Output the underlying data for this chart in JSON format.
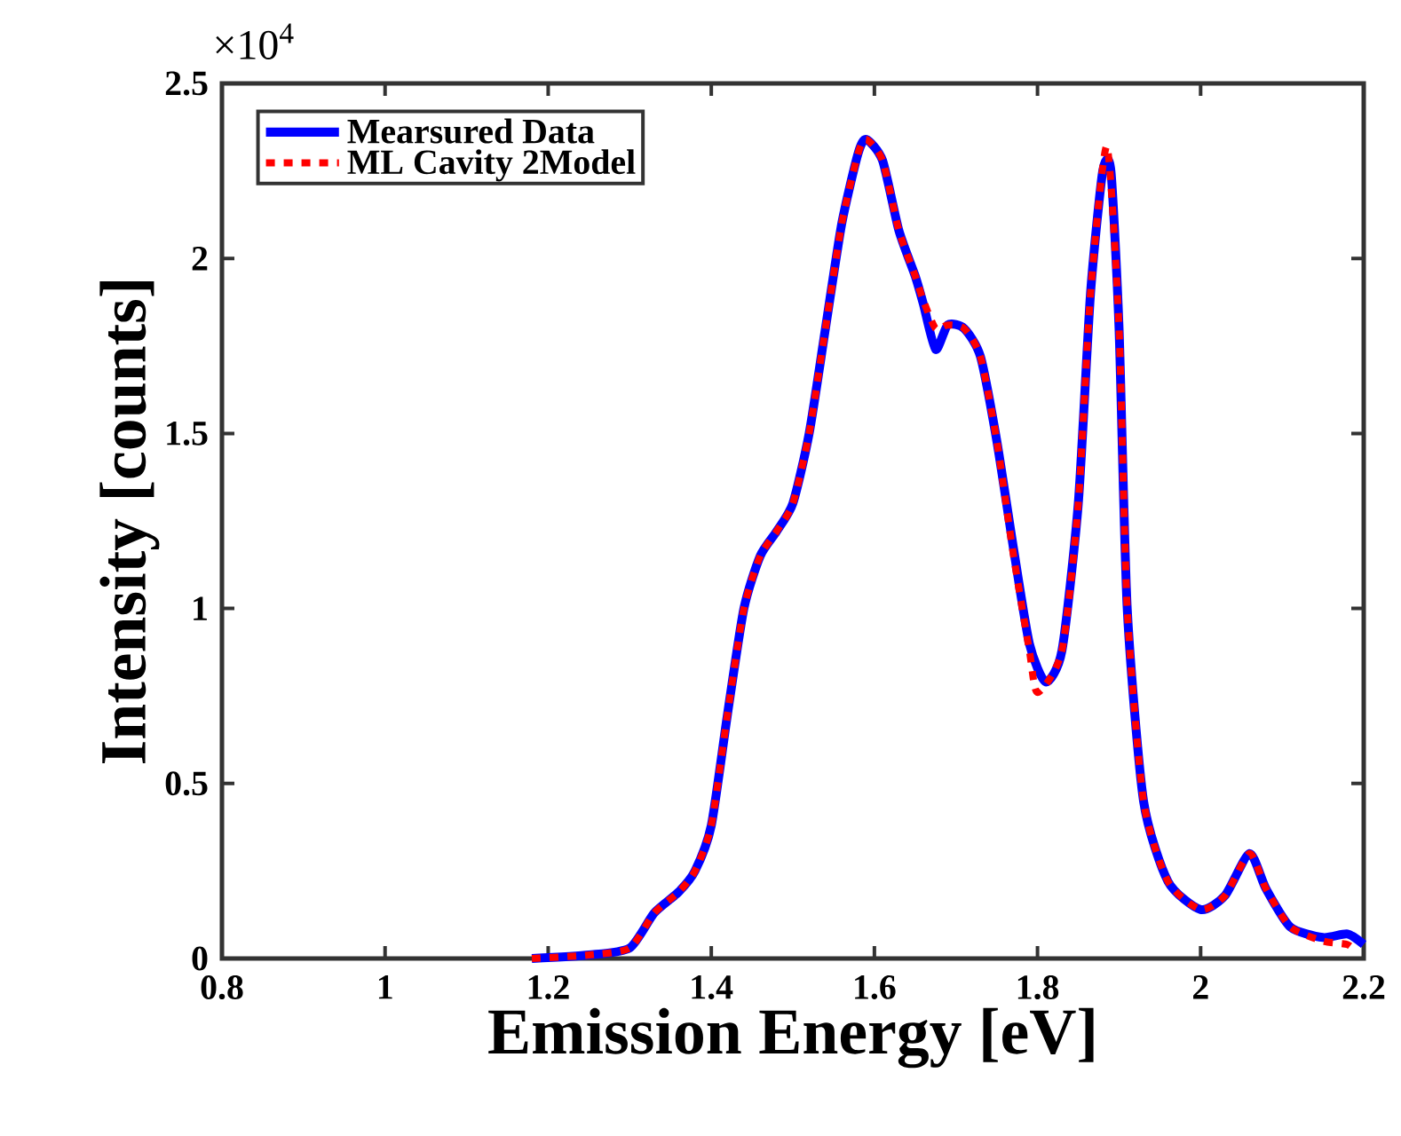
{
  "chart_data": {
    "type": "line",
    "xlabel": "Emission Energy [eV]",
    "ylabel": "Intensity [counts]",
    "annotations": [
      "×10$^{4}$"
    ],
    "xlim": [
      0.8,
      2.2
    ],
    "xticks": [
      0.8,
      1,
      1.2,
      1.4,
      1.6,
      1.8,
      2,
      2.2
    ],
    "ylim": [
      0,
      2.5
    ],
    "yticks": [
      0,
      0.5,
      1,
      1.5,
      2,
      2.5
    ],
    "grid": false,
    "legend": "top left",
    "series": [
      {
        "name": "Mearsured Data",
        "color": "#0000ff",
        "line_style": "solid",
        "x": [
          1.18,
          1.25,
          1.3,
          1.33,
          1.36,
          1.38,
          1.4,
          1.42,
          1.44,
          1.46,
          1.48,
          1.5,
          1.52,
          1.54,
          1.56,
          1.58,
          1.59,
          1.61,
          1.63,
          1.65,
          1.66,
          1.675,
          1.69,
          1.71,
          1.73,
          1.75,
          1.77,
          1.79,
          1.81,
          1.83,
          1.85,
          1.865,
          1.88,
          1.89,
          1.9,
          1.91,
          1.93,
          1.96,
          2.0,
          2.03,
          2.06,
          2.08,
          2.11,
          2.15,
          2.18,
          2.2
        ],
        "values": [
          0.0,
          0.01,
          0.03,
          0.13,
          0.19,
          0.25,
          0.38,
          0.7,
          1.0,
          1.15,
          1.22,
          1.3,
          1.5,
          1.8,
          2.1,
          2.3,
          2.34,
          2.28,
          2.08,
          1.95,
          1.87,
          1.74,
          1.81,
          1.8,
          1.72,
          1.48,
          1.18,
          0.9,
          0.79,
          0.88,
          1.3,
          1.9,
          2.25,
          2.25,
          1.8,
          1.0,
          0.45,
          0.22,
          0.14,
          0.18,
          0.3,
          0.2,
          0.09,
          0.06,
          0.07,
          0.04
        ]
      },
      {
        "name": "ML Cavity 2Model",
        "color": "#ff0000",
        "line_style": "dotted",
        "x": [
          1.18,
          1.25,
          1.3,
          1.33,
          1.36,
          1.38,
          1.4,
          1.42,
          1.44,
          1.46,
          1.48,
          1.5,
          1.52,
          1.54,
          1.56,
          1.58,
          1.59,
          1.61,
          1.63,
          1.65,
          1.66,
          1.675,
          1.69,
          1.71,
          1.73,
          1.75,
          1.77,
          1.79,
          1.8,
          1.83,
          1.85,
          1.865,
          1.885,
          1.9,
          1.91,
          1.93,
          1.96,
          2.0,
          2.03,
          2.06,
          2.08,
          2.11,
          2.15,
          2.18,
          2.19
        ],
        "values": [
          0.0,
          0.01,
          0.03,
          0.13,
          0.19,
          0.25,
          0.38,
          0.7,
          1.0,
          1.15,
          1.22,
          1.3,
          1.5,
          1.8,
          2.1,
          2.3,
          2.34,
          2.28,
          2.08,
          1.95,
          1.88,
          1.8,
          1.81,
          1.8,
          1.72,
          1.48,
          1.16,
          0.88,
          0.76,
          0.88,
          1.3,
          1.9,
          2.32,
          1.8,
          1.0,
          0.45,
          0.22,
          0.14,
          0.18,
          0.3,
          0.2,
          0.09,
          0.05,
          0.04,
          0.02
        ]
      }
    ]
  }
}
